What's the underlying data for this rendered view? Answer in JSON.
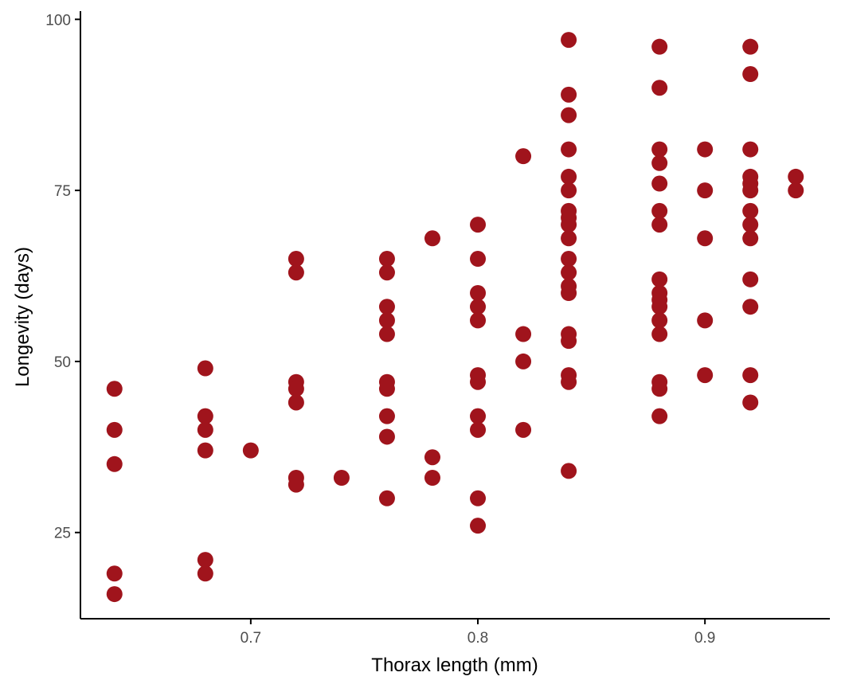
{
  "chart_data": {
    "type": "scatter",
    "title": "",
    "xlabel": "Thorax length (mm)",
    "ylabel": "Longevity (days)",
    "xlim": [
      0.625,
      0.955
    ],
    "ylim": [
      12.4,
      101.2
    ],
    "x_ticks": [
      0.7,
      0.8,
      0.9
    ],
    "x_tick_labels": [
      "0.7",
      "0.8",
      "0.9"
    ],
    "y_ticks": [
      25,
      50,
      75,
      100
    ],
    "y_tick_labels": [
      "25",
      "50",
      "75",
      "100"
    ],
    "grid": false,
    "legend": "none",
    "point_color": "#A0141C",
    "points": [
      [
        0.64,
        46
      ],
      [
        0.64,
        40
      ],
      [
        0.64,
        35
      ],
      [
        0.64,
        19
      ],
      [
        0.64,
        16
      ],
      [
        0.68,
        49
      ],
      [
        0.68,
        42
      ],
      [
        0.68,
        40
      ],
      [
        0.68,
        37
      ],
      [
        0.68,
        21
      ],
      [
        0.68,
        19
      ],
      [
        0.7,
        37
      ],
      [
        0.72,
        65
      ],
      [
        0.72,
        63
      ],
      [
        0.72,
        47
      ],
      [
        0.72,
        46
      ],
      [
        0.72,
        44
      ],
      [
        0.72,
        33
      ],
      [
        0.72,
        32
      ],
      [
        0.74,
        33
      ],
      [
        0.76,
        65
      ],
      [
        0.76,
        63
      ],
      [
        0.76,
        58
      ],
      [
        0.76,
        56
      ],
      [
        0.76,
        54
      ],
      [
        0.76,
        47
      ],
      [
        0.76,
        46
      ],
      [
        0.76,
        42
      ],
      [
        0.76,
        39
      ],
      [
        0.76,
        30
      ],
      [
        0.78,
        68
      ],
      [
        0.78,
        36
      ],
      [
        0.78,
        33
      ],
      [
        0.8,
        70
      ],
      [
        0.8,
        65
      ],
      [
        0.8,
        60
      ],
      [
        0.8,
        58
      ],
      [
        0.8,
        56
      ],
      [
        0.8,
        48
      ],
      [
        0.8,
        47
      ],
      [
        0.8,
        42
      ],
      [
        0.8,
        40
      ],
      [
        0.8,
        30
      ],
      [
        0.8,
        26
      ],
      [
        0.82,
        80
      ],
      [
        0.82,
        54
      ],
      [
        0.82,
        50
      ],
      [
        0.82,
        40
      ],
      [
        0.84,
        97
      ],
      [
        0.84,
        89
      ],
      [
        0.84,
        86
      ],
      [
        0.84,
        81
      ],
      [
        0.84,
        77
      ],
      [
        0.84,
        75
      ],
      [
        0.84,
        72
      ],
      [
        0.84,
        71
      ],
      [
        0.84,
        70
      ],
      [
        0.84,
        68
      ],
      [
        0.84,
        65
      ],
      [
        0.84,
        63
      ],
      [
        0.84,
        61
      ],
      [
        0.84,
        60
      ],
      [
        0.84,
        54
      ],
      [
        0.84,
        53
      ],
      [
        0.84,
        48
      ],
      [
        0.84,
        47
      ],
      [
        0.84,
        34
      ],
      [
        0.88,
        96
      ],
      [
        0.88,
        90
      ],
      [
        0.88,
        81
      ],
      [
        0.88,
        79
      ],
      [
        0.88,
        76
      ],
      [
        0.88,
        72
      ],
      [
        0.88,
        70
      ],
      [
        0.88,
        62
      ],
      [
        0.88,
        60
      ],
      [
        0.88,
        59
      ],
      [
        0.88,
        58
      ],
      [
        0.88,
        56
      ],
      [
        0.88,
        54
      ],
      [
        0.88,
        47
      ],
      [
        0.88,
        46
      ],
      [
        0.88,
        42
      ],
      [
        0.9,
        81
      ],
      [
        0.9,
        75
      ],
      [
        0.9,
        68
      ],
      [
        0.9,
        56
      ],
      [
        0.9,
        48
      ],
      [
        0.92,
        96
      ],
      [
        0.92,
        92
      ],
      [
        0.92,
        81
      ],
      [
        0.92,
        77
      ],
      [
        0.92,
        76
      ],
      [
        0.92,
        75
      ],
      [
        0.92,
        72
      ],
      [
        0.92,
        70
      ],
      [
        0.92,
        68
      ],
      [
        0.92,
        62
      ],
      [
        0.92,
        58
      ],
      [
        0.92,
        48
      ],
      [
        0.92,
        44
      ],
      [
        0.94,
        77
      ],
      [
        0.94,
        75
      ]
    ]
  }
}
